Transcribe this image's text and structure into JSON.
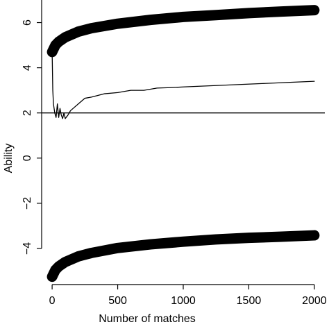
{
  "chart_data": {
    "type": "line",
    "xlabel": "Number of matches",
    "ylabel": "Ability",
    "xlim": [
      -80,
      2080
    ],
    "ylim": [
      -5.6,
      7
    ],
    "xticks": [
      0,
      500,
      1000,
      1500,
      2000
    ],
    "yticks": [
      {
        "value": -4,
        "label": "−4"
      },
      {
        "value": -2,
        "label": "−2"
      },
      0,
      2,
      4,
      6
    ],
    "hline": 2,
    "series": [
      {
        "color": "#000000",
        "style": "thick",
        "x": [
          0,
          25,
          50,
          100,
          200,
          300,
          500,
          750,
          1000,
          1250,
          1500,
          1750,
          2000
        ],
        "values": [
          4.7,
          5.0,
          5.15,
          5.35,
          5.6,
          5.75,
          5.95,
          6.12,
          6.25,
          6.33,
          6.42,
          6.49,
          6.55
        ]
      },
      {
        "color": "#000000",
        "style": "thin",
        "x": [
          0,
          5,
          10,
          20,
          30,
          40,
          50,
          60,
          70,
          80,
          90,
          100,
          120,
          140,
          160,
          200,
          250,
          300,
          400,
          500,
          600,
          700,
          800,
          900,
          1000,
          1200,
          1400,
          1600,
          1800,
          2000
        ],
        "values": [
          4.7,
          3.0,
          2.4,
          2.0,
          1.8,
          2.4,
          1.8,
          2.2,
          1.9,
          1.75,
          2.0,
          1.75,
          1.9,
          2.1,
          2.2,
          2.4,
          2.65,
          2.7,
          2.85,
          2.9,
          3.0,
          3.0,
          3.1,
          3.12,
          3.15,
          3.2,
          3.25,
          3.3,
          3.35,
          3.4
        ]
      },
      {
        "color": "#000000",
        "style": "thick",
        "x": [
          0,
          25,
          50,
          100,
          200,
          300,
          500,
          750,
          1000,
          1250,
          1500,
          1750,
          2000
        ],
        "values": [
          -5.25,
          -4.95,
          -4.8,
          -4.6,
          -4.35,
          -4.2,
          -3.98,
          -3.82,
          -3.7,
          -3.6,
          -3.53,
          -3.48,
          -3.42
        ]
      }
    ]
  }
}
